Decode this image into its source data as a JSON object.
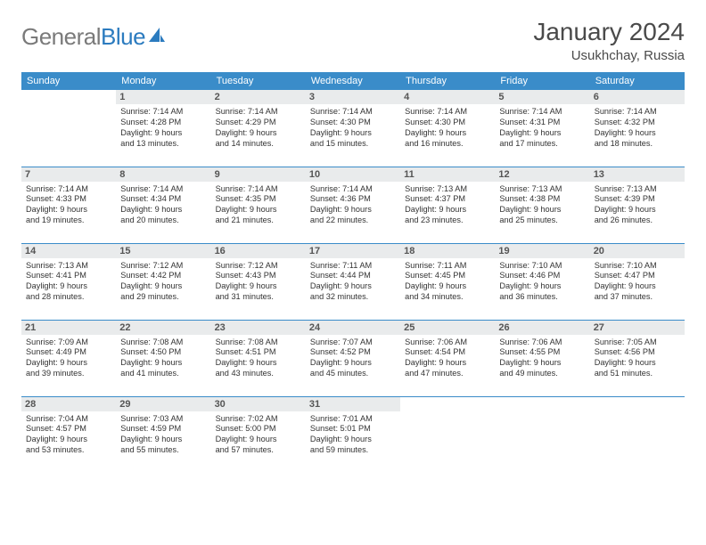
{
  "logo": {
    "text1": "General",
    "text2": "Blue"
  },
  "title": "January 2024",
  "location": "Usukhchay, Russia",
  "colors": {
    "header_bg": "#3a8cc9",
    "header_text": "#ffffff",
    "daynum_bg": "#e9ebec",
    "border": "#3a8cc9",
    "logo_gray": "#7a7a7a",
    "logo_blue": "#2b7bbf"
  },
  "weekdays": [
    "Sunday",
    "Monday",
    "Tuesday",
    "Wednesday",
    "Thursday",
    "Friday",
    "Saturday"
  ],
  "weeks": [
    [
      {
        "n": "",
        "lines": []
      },
      {
        "n": "1",
        "lines": [
          "Sunrise: 7:14 AM",
          "Sunset: 4:28 PM",
          "Daylight: 9 hours",
          "and 13 minutes."
        ]
      },
      {
        "n": "2",
        "lines": [
          "Sunrise: 7:14 AM",
          "Sunset: 4:29 PM",
          "Daylight: 9 hours",
          "and 14 minutes."
        ]
      },
      {
        "n": "3",
        "lines": [
          "Sunrise: 7:14 AM",
          "Sunset: 4:30 PM",
          "Daylight: 9 hours",
          "and 15 minutes."
        ]
      },
      {
        "n": "4",
        "lines": [
          "Sunrise: 7:14 AM",
          "Sunset: 4:30 PM",
          "Daylight: 9 hours",
          "and 16 minutes."
        ]
      },
      {
        "n": "5",
        "lines": [
          "Sunrise: 7:14 AM",
          "Sunset: 4:31 PM",
          "Daylight: 9 hours",
          "and 17 minutes."
        ]
      },
      {
        "n": "6",
        "lines": [
          "Sunrise: 7:14 AM",
          "Sunset: 4:32 PM",
          "Daylight: 9 hours",
          "and 18 minutes."
        ]
      }
    ],
    [
      {
        "n": "7",
        "lines": [
          "Sunrise: 7:14 AM",
          "Sunset: 4:33 PM",
          "Daylight: 9 hours",
          "and 19 minutes."
        ]
      },
      {
        "n": "8",
        "lines": [
          "Sunrise: 7:14 AM",
          "Sunset: 4:34 PM",
          "Daylight: 9 hours",
          "and 20 minutes."
        ]
      },
      {
        "n": "9",
        "lines": [
          "Sunrise: 7:14 AM",
          "Sunset: 4:35 PM",
          "Daylight: 9 hours",
          "and 21 minutes."
        ]
      },
      {
        "n": "10",
        "lines": [
          "Sunrise: 7:14 AM",
          "Sunset: 4:36 PM",
          "Daylight: 9 hours",
          "and 22 minutes."
        ]
      },
      {
        "n": "11",
        "lines": [
          "Sunrise: 7:13 AM",
          "Sunset: 4:37 PM",
          "Daylight: 9 hours",
          "and 23 minutes."
        ]
      },
      {
        "n": "12",
        "lines": [
          "Sunrise: 7:13 AM",
          "Sunset: 4:38 PM",
          "Daylight: 9 hours",
          "and 25 minutes."
        ]
      },
      {
        "n": "13",
        "lines": [
          "Sunrise: 7:13 AM",
          "Sunset: 4:39 PM",
          "Daylight: 9 hours",
          "and 26 minutes."
        ]
      }
    ],
    [
      {
        "n": "14",
        "lines": [
          "Sunrise: 7:13 AM",
          "Sunset: 4:41 PM",
          "Daylight: 9 hours",
          "and 28 minutes."
        ]
      },
      {
        "n": "15",
        "lines": [
          "Sunrise: 7:12 AM",
          "Sunset: 4:42 PM",
          "Daylight: 9 hours",
          "and 29 minutes."
        ]
      },
      {
        "n": "16",
        "lines": [
          "Sunrise: 7:12 AM",
          "Sunset: 4:43 PM",
          "Daylight: 9 hours",
          "and 31 minutes."
        ]
      },
      {
        "n": "17",
        "lines": [
          "Sunrise: 7:11 AM",
          "Sunset: 4:44 PM",
          "Daylight: 9 hours",
          "and 32 minutes."
        ]
      },
      {
        "n": "18",
        "lines": [
          "Sunrise: 7:11 AM",
          "Sunset: 4:45 PM",
          "Daylight: 9 hours",
          "and 34 minutes."
        ]
      },
      {
        "n": "19",
        "lines": [
          "Sunrise: 7:10 AM",
          "Sunset: 4:46 PM",
          "Daylight: 9 hours",
          "and 36 minutes."
        ]
      },
      {
        "n": "20",
        "lines": [
          "Sunrise: 7:10 AM",
          "Sunset: 4:47 PM",
          "Daylight: 9 hours",
          "and 37 minutes."
        ]
      }
    ],
    [
      {
        "n": "21",
        "lines": [
          "Sunrise: 7:09 AM",
          "Sunset: 4:49 PM",
          "Daylight: 9 hours",
          "and 39 minutes."
        ]
      },
      {
        "n": "22",
        "lines": [
          "Sunrise: 7:08 AM",
          "Sunset: 4:50 PM",
          "Daylight: 9 hours",
          "and 41 minutes."
        ]
      },
      {
        "n": "23",
        "lines": [
          "Sunrise: 7:08 AM",
          "Sunset: 4:51 PM",
          "Daylight: 9 hours",
          "and 43 minutes."
        ]
      },
      {
        "n": "24",
        "lines": [
          "Sunrise: 7:07 AM",
          "Sunset: 4:52 PM",
          "Daylight: 9 hours",
          "and 45 minutes."
        ]
      },
      {
        "n": "25",
        "lines": [
          "Sunrise: 7:06 AM",
          "Sunset: 4:54 PM",
          "Daylight: 9 hours",
          "and 47 minutes."
        ]
      },
      {
        "n": "26",
        "lines": [
          "Sunrise: 7:06 AM",
          "Sunset: 4:55 PM",
          "Daylight: 9 hours",
          "and 49 minutes."
        ]
      },
      {
        "n": "27",
        "lines": [
          "Sunrise: 7:05 AM",
          "Sunset: 4:56 PM",
          "Daylight: 9 hours",
          "and 51 minutes."
        ]
      }
    ],
    [
      {
        "n": "28",
        "lines": [
          "Sunrise: 7:04 AM",
          "Sunset: 4:57 PM",
          "Daylight: 9 hours",
          "and 53 minutes."
        ]
      },
      {
        "n": "29",
        "lines": [
          "Sunrise: 7:03 AM",
          "Sunset: 4:59 PM",
          "Daylight: 9 hours",
          "and 55 minutes."
        ]
      },
      {
        "n": "30",
        "lines": [
          "Sunrise: 7:02 AM",
          "Sunset: 5:00 PM",
          "Daylight: 9 hours",
          "and 57 minutes."
        ]
      },
      {
        "n": "31",
        "lines": [
          "Sunrise: 7:01 AM",
          "Sunset: 5:01 PM",
          "Daylight: 9 hours",
          "and 59 minutes."
        ]
      },
      {
        "n": "",
        "lines": []
      },
      {
        "n": "",
        "lines": []
      },
      {
        "n": "",
        "lines": []
      }
    ]
  ]
}
